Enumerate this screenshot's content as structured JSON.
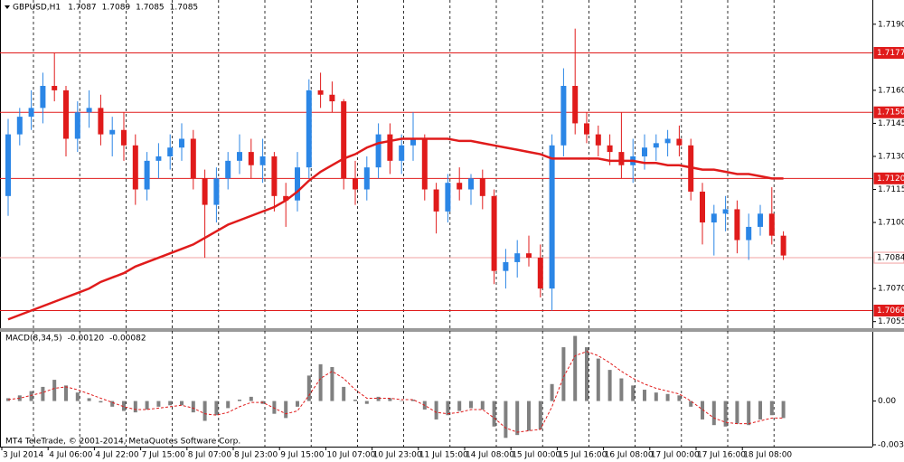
{
  "chart_data": [
    {
      "type": "candlestick",
      "title": "GBPUSD,H1",
      "header_values": [
        1.7087,
        1.7089,
        1.7085,
        1.7085
      ],
      "categories": [
        "3 Jul 2014",
        null,
        null,
        null,
        "4 Jul 06:00",
        null,
        null,
        null,
        "4 Jul 22:00",
        null,
        null,
        null,
        "7 Jul 15:00",
        null,
        null,
        null,
        "8 Jul 07:00",
        null,
        null,
        null,
        "8 Jul 23:00",
        null,
        null,
        null,
        "9 Jul 15:00",
        null,
        null,
        null,
        "10 Jul 07:00",
        null,
        null,
        null,
        "10 Jul 23:00",
        null,
        null,
        null,
        "11 Jul 15:00",
        null,
        null,
        null,
        "14 Jul 08:00",
        null,
        null,
        null,
        "15 Jul 00:00",
        null,
        null,
        null,
        "15 Jul 16:00",
        null,
        null,
        null,
        "16 Jul 08:00",
        null,
        null,
        null,
        "17 Jul 00:00",
        null,
        null,
        null,
        "17 Jul 16:00",
        null,
        null,
        null,
        "18 Jul 08:00",
        null,
        null,
        null
      ],
      "open": [
        1.7112,
        1.714,
        1.7148,
        1.7152,
        1.7162,
        1.716,
        1.7138,
        1.715,
        1.7152,
        1.714,
        1.7142,
        1.7135,
        1.7115,
        1.7128,
        1.713,
        1.7134,
        1.7138,
        1.712,
        1.7108,
        1.712,
        1.7128,
        1.7132,
        1.7126,
        1.713,
        1.7112,
        1.711,
        1.7125,
        1.716,
        1.7158,
        1.7155,
        1.712,
        1.7115,
        1.7125,
        1.714,
        1.7128,
        1.7135,
        1.7138,
        1.7115,
        1.7105,
        1.7118,
        1.7115,
        1.712,
        1.7112,
        1.7078,
        1.7082,
        1.7086,
        1.7084,
        1.707,
        1.7135,
        1.7162,
        1.7145,
        1.714,
        1.7135,
        1.7132,
        1.7126,
        1.713,
        1.7134,
        1.7136,
        1.7138,
        1.7135,
        1.7114,
        1.71,
        1.7104,
        1.7106,
        1.7092,
        1.7098,
        1.7104,
        1.7094
      ],
      "high": [
        1.7147,
        1.7152,
        1.716,
        1.7168,
        1.7177,
        1.7162,
        1.7155,
        1.716,
        1.7158,
        1.7148,
        1.715,
        1.714,
        1.7132,
        1.7136,
        1.714,
        1.7145,
        1.7142,
        1.7124,
        1.7125,
        1.7132,
        1.714,
        1.7138,
        1.7138,
        1.7132,
        1.7118,
        1.7132,
        1.7165,
        1.7168,
        1.7164,
        1.7156,
        1.7128,
        1.713,
        1.7145,
        1.7145,
        1.714,
        1.715,
        1.714,
        1.7118,
        1.7122,
        1.7125,
        1.7122,
        1.7124,
        1.7115,
        1.7088,
        1.7092,
        1.7094,
        1.709,
        1.714,
        1.717,
        1.7188,
        1.715,
        1.7144,
        1.714,
        1.715,
        1.7138,
        1.714,
        1.714,
        1.7142,
        1.7144,
        1.7138,
        1.7118,
        1.7108,
        1.7112,
        1.711,
        1.7104,
        1.7108,
        1.7116,
        1.7096
      ],
      "low": [
        1.7103,
        1.7135,
        1.7142,
        1.7145,
        1.7155,
        1.713,
        1.7132,
        1.7143,
        1.7135,
        1.713,
        1.7128,
        1.7108,
        1.711,
        1.712,
        1.7124,
        1.7128,
        1.7115,
        1.7084,
        1.71,
        1.7115,
        1.7122,
        1.712,
        1.7118,
        1.7105,
        1.7098,
        1.7105,
        1.712,
        1.7152,
        1.715,
        1.7115,
        1.7108,
        1.711,
        1.712,
        1.7122,
        1.7122,
        1.7128,
        1.711,
        1.7095,
        1.71,
        1.711,
        1.7108,
        1.7106,
        1.7072,
        1.707,
        1.7075,
        1.708,
        1.7066,
        1.706,
        1.713,
        1.714,
        1.7136,
        1.713,
        1.7126,
        1.712,
        1.7118,
        1.7124,
        1.7128,
        1.713,
        1.713,
        1.711,
        1.709,
        1.7085,
        1.7096,
        1.7086,
        1.7083,
        1.7094,
        1.709,
        1.7083
      ],
      "close": [
        1.714,
        1.7148,
        1.7152,
        1.7162,
        1.716,
        1.7138,
        1.715,
        1.7152,
        1.714,
        1.7142,
        1.7135,
        1.7115,
        1.7128,
        1.713,
        1.7134,
        1.7138,
        1.712,
        1.7108,
        1.712,
        1.7128,
        1.7132,
        1.7126,
        1.713,
        1.7112,
        1.711,
        1.7125,
        1.716,
        1.7158,
        1.7155,
        1.712,
        1.7115,
        1.7125,
        1.714,
        1.7128,
        1.7135,
        1.7138,
        1.7115,
        1.7105,
        1.7118,
        1.7115,
        1.712,
        1.7112,
        1.7078,
        1.7082,
        1.7086,
        1.7084,
        1.707,
        1.7135,
        1.7162,
        1.7145,
        1.714,
        1.7135,
        1.7132,
        1.7126,
        1.713,
        1.7134,
        1.7136,
        1.7138,
        1.7135,
        1.7114,
        1.71,
        1.7104,
        1.7106,
        1.7092,
        1.7098,
        1.7104,
        1.7094,
        1.7085
      ],
      "up_color": "#2b86e6",
      "down_color": "#e01b1b",
      "ma": {
        "color": "#e01b1b",
        "values": [
          1.7056,
          1.7058,
          1.706,
          1.7062,
          1.7064,
          1.7066,
          1.7068,
          1.707,
          1.7073,
          1.7075,
          1.7077,
          1.708,
          1.7082,
          1.7084,
          1.7086,
          1.7088,
          1.709,
          1.7093,
          1.7096,
          1.7099,
          1.7101,
          1.7103,
          1.7105,
          1.7107,
          1.711,
          1.7114,
          1.7119,
          1.7123,
          1.7126,
          1.7129,
          1.7131,
          1.7134,
          1.7136,
          1.7137,
          1.7138,
          1.7138,
          1.7138,
          1.7138,
          1.7138,
          1.7137,
          1.7137,
          1.7136,
          1.7135,
          1.7134,
          1.7133,
          1.7132,
          1.7131,
          1.7129,
          1.7129,
          1.7129,
          1.7129,
          1.7129,
          1.7128,
          1.7128,
          1.7128,
          1.7127,
          1.7127,
          1.7126,
          1.7126,
          1.7125,
          1.7124,
          1.7124,
          1.7123,
          1.7122,
          1.7122,
          1.7121,
          1.712,
          1.712
        ]
      },
      "levels": [
        1.7177,
        {
          "value": 1.715,
          "label": "1.7150"
        },
        {
          "value": 1.712,
          "label": "1.7120"
        },
        1.7084,
        {
          "value": 1.706,
          "label": "1.7060"
        }
      ],
      "level_colors": [
        "#e01b1b",
        "#e01b1b",
        "#e01b1b",
        "#f2a0a0",
        "#e01b1b"
      ],
      "ylim": [
        1.7052,
        1.7201
      ],
      "yticks": [
        1.7055,
        {
          "value": 1.707,
          "label": "1.7070"
        },
        {
          "value": 1.71,
          "label": "1.7100"
        },
        1.7115,
        {
          "value": 1.713,
          "label": "1.7130"
        },
        1.7145,
        {
          "value": 1.716,
          "label": "1.7160"
        },
        {
          "value": 1.719,
          "label": "1.7190"
        }
      ]
    },
    {
      "type": "macd",
      "title": "MACD(8,34,5)",
      "header_values": [
        {
          "value": -0.0012,
          "label": "-0.00120"
        },
        -0.00082
      ],
      "histogram": {
        "color": "#808080",
        "values": [
          0.0002,
          0.0004,
          0.0007,
          0.001,
          0.0015,
          0.0011,
          0.0006,
          0.0002,
          -0.0001,
          -0.0004,
          -0.0007,
          -0.0008,
          -0.0006,
          -0.0004,
          -0.0003,
          -0.0003,
          -0.0008,
          -0.0014,
          -0.001,
          -0.0005,
          0.0001,
          0.0003,
          -0.0002,
          -0.0009,
          -0.0012,
          -0.0004,
          0.0018,
          0.0026,
          0.0024,
          0.001,
          0.0001,
          -0.0002,
          0.0003,
          0.0002,
          0,
          0.0001,
          -0.0006,
          -0.0013,
          -0.001,
          -0.0007,
          -0.0005,
          -0.0006,
          -0.0018,
          -0.0026,
          -0.0024,
          -0.0021,
          -0.002,
          0.0012,
          0.0038,
          0.0046,
          0.0038,
          0.003,
          0.0022,
          0.0016,
          0.0011,
          0.0008,
          0.0006,
          0.0005,
          0.0004,
          -0.0004,
          -0.0013,
          -0.0017,
          -0.0018,
          -0.0016,
          -0.0017,
          -0.0013,
          -0.001,
          -0.0012
        ]
      },
      "signal": {
        "color": "#e01b1b",
        "values": [
          0.0001,
          0.0002,
          0.0004,
          0.0006,
          0.0009,
          0.001,
          0.0008,
          0.0005,
          0.0002,
          -0.0001,
          -0.0004,
          -0.0006,
          -0.0006,
          -0.0005,
          -0.0004,
          -0.0003,
          -0.0005,
          -0.0009,
          -0.001,
          -0.0008,
          -0.0004,
          -0.0001,
          -0.0001,
          -0.0005,
          -0.0009,
          -0.0007,
          0.0004,
          0.0016,
          0.0021,
          0.0016,
          0.0008,
          0.0002,
          0.0002,
          0.0002,
          0.0001,
          0.0001,
          -0.0003,
          -0.0008,
          -0.0009,
          -0.0008,
          -0.0006,
          -0.0006,
          -0.0012,
          -0.0019,
          -0.0022,
          -0.0021,
          -0.002,
          -0.0004,
          0.0017,
          0.0032,
          0.0035,
          0.0032,
          0.0027,
          0.0021,
          0.0016,
          0.0012,
          0.0009,
          0.0007,
          0.0005,
          0,
          -0.0006,
          -0.0012,
          -0.0015,
          -0.0016,
          -0.0016,
          -0.0014,
          -0.0012,
          -0.0012
        ]
      },
      "ylim": [
        -0.00322,
        0.00489
      ],
      "yticks": [
        {
          "value": 0,
          "label": "0.00"
        },
        -0.00309
      ],
      "footer": "MT4 TeleTrade, © 2001-2014, MetaQuotes Software Corp."
    }
  ]
}
